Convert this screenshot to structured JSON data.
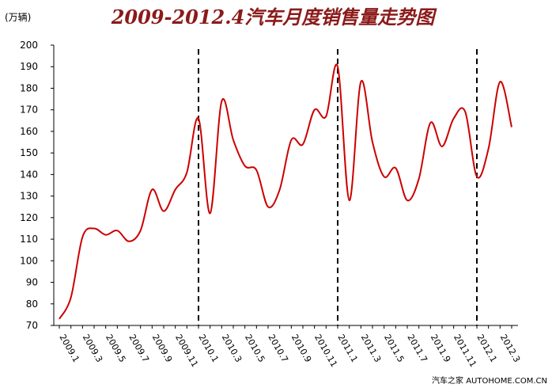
{
  "chart_data": {
    "type": "line",
    "title": "2009-2012.4汽车月度销售量走势图",
    "ylabel": "(万辆)",
    "watermark": "汽车之家 AUTOHOME.COM.CN",
    "categories": [
      "2009.1",
      null,
      "2009.3",
      null,
      "2009.5",
      null,
      "2009.7",
      null,
      "2009.9",
      null,
      "2009.11",
      null,
      "2010.1",
      null,
      "2010.3",
      null,
      "2010.5",
      null,
      "2010.7",
      null,
      "2010.9",
      null,
      "2010.11",
      null,
      "2011.1",
      null,
      "2011.3",
      null,
      "2011.5",
      null,
      "2011.7",
      null,
      "2011.9",
      null,
      "2011.11",
      null,
      "2012.1",
      null,
      "2012.3",
      null
    ],
    "series": [
      {
        "name": "汽车月度销售量",
        "color": "#cc0000",
        "values": [
          73,
          83,
          111,
          115,
          112,
          114,
          109,
          114,
          133,
          123,
          133,
          141,
          166,
          122,
          174,
          156,
          144,
          142,
          125,
          133,
          156,
          154,
          170,
          167,
          190,
          128,
          183,
          155,
          139,
          143,
          128,
          138,
          164,
          153,
          166,
          169,
          139,
          152,
          183,
          162
        ]
      }
    ],
    "ylim": [
      70,
      200
    ],
    "yticks": [
      70,
      80,
      90,
      100,
      110,
      120,
      130,
      140,
      150,
      160,
      170,
      180,
      190,
      200
    ],
    "grid": false
  }
}
